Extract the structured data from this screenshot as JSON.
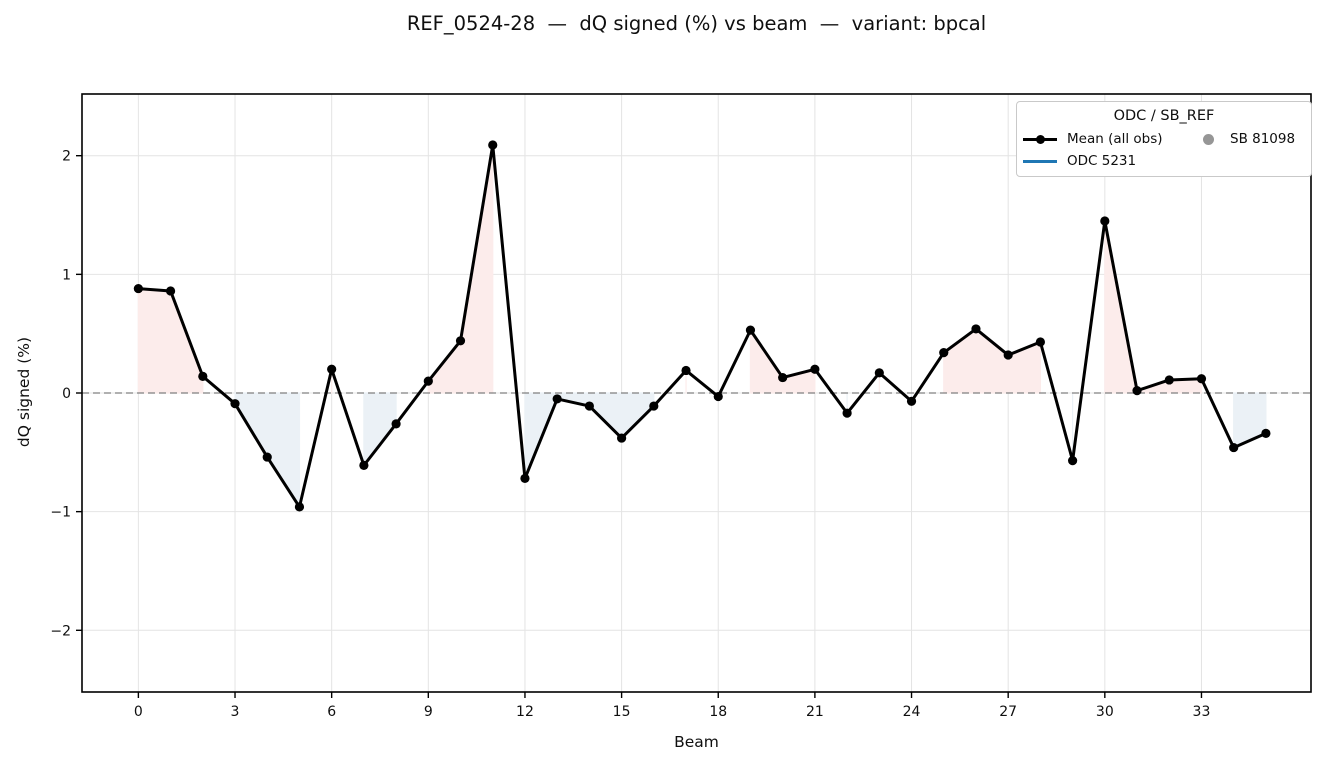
{
  "chart_data": {
    "type": "line",
    "title": "REF_0524-28  —  dQ signed (%) vs beam  —  variant: bpcal",
    "xlabel": "Beam",
    "ylabel": "dQ signed (%)",
    "x": [
      0,
      1,
      2,
      3,
      4,
      5,
      6,
      7,
      8,
      9,
      10,
      11,
      12,
      13,
      14,
      15,
      16,
      17,
      18,
      19,
      20,
      21,
      22,
      23,
      24,
      25,
      26,
      27,
      28,
      29,
      30,
      31,
      32,
      33,
      34,
      35
    ],
    "series": [
      {
        "name": "Mean (all obs)",
        "color": "#000000",
        "marker": "circle",
        "values": [
          0.88,
          0.86,
          0.14,
          -0.09,
          -0.54,
          -0.96,
          0.2,
          -0.61,
          -0.26,
          0.1,
          0.44,
          2.09,
          -0.72,
          -0.05,
          -0.11,
          -0.38,
          -0.11,
          0.19,
          -0.03,
          0.53,
          0.13,
          0.2,
          -0.17,
          0.17,
          -0.07,
          0.34,
          0.54,
          0.32,
          0.43,
          -0.57,
          1.45,
          0.02,
          0.11,
          0.12,
          -0.46,
          -0.34
        ]
      }
    ],
    "xlim": [
      -1.75,
      36.4
    ],
    "ylim": [
      -2.52,
      2.52
    ],
    "xticks": [
      0,
      3,
      6,
      9,
      12,
      15,
      18,
      21,
      24,
      27,
      30,
      33
    ],
    "yticks": [
      -2,
      -1,
      0,
      1,
      2
    ],
    "ytick_labels": [
      "−2",
      "−1",
      "0",
      "1",
      "2"
    ],
    "grid": true,
    "grid_color": "#e4e4e4",
    "zero_line": {
      "y": 0,
      "style": "dashed",
      "color": "#808080"
    },
    "fill_colors": {
      "positive": "#fceceb",
      "negative": "#ebf1f6"
    },
    "legend": {
      "title": "ODC / SB_REF",
      "position": "upper-right",
      "items": [
        {
          "label": "Mean (all obs)",
          "type": "line-marker",
          "color": "#000000"
        },
        {
          "label": "ODC 5231",
          "type": "line",
          "color": "#1f77b4"
        },
        {
          "label": "SB 81098",
          "type": "marker",
          "color": "#969696"
        }
      ]
    }
  }
}
